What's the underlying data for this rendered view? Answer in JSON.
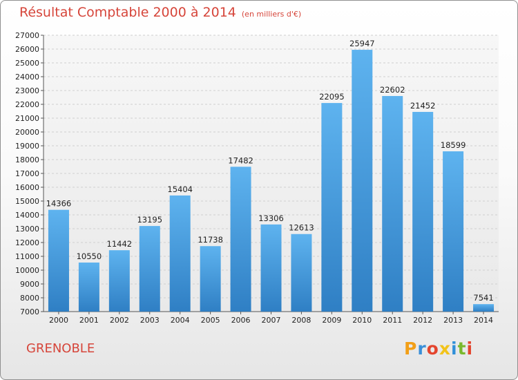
{
  "chart_data": {
    "type": "bar",
    "title": "Résultat Comptable 2000 à 2014",
    "subtitle": "(en milliers d'€)",
    "categories": [
      "2000",
      "2001",
      "2002",
      "2003",
      "2004",
      "2005",
      "2006",
      "2007",
      "2008",
      "2009",
      "2010",
      "2011",
      "2012",
      "2013",
      "2014"
    ],
    "values": [
      14366,
      10550,
      11442,
      13195,
      15404,
      11738,
      17482,
      13306,
      12613,
      22095,
      25947,
      22602,
      21452,
      18599,
      7541
    ],
    "ylim": [
      7000,
      27000
    ],
    "yticks": [
      7000,
      8000,
      9000,
      10000,
      11000,
      12000,
      13000,
      14000,
      15000,
      16000,
      17000,
      18000,
      19000,
      20000,
      21000,
      22000,
      23000,
      24000,
      25000,
      26000,
      27000
    ],
    "grid": true,
    "bar_color": "#4a9fe0"
  },
  "footer": {
    "city": "GRENOBLE",
    "logo": "Proxiti"
  }
}
